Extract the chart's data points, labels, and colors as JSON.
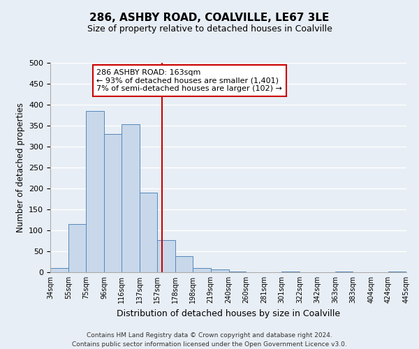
{
  "title": "286, ASHBY ROAD, COALVILLE, LE67 3LE",
  "subtitle": "Size of property relative to detached houses in Coalville",
  "xlabel": "Distribution of detached houses by size in Coalville",
  "ylabel": "Number of detached properties",
  "bin_edges": [
    34,
    55,
    75,
    96,
    116,
    137,
    157,
    178,
    198,
    219,
    240,
    260,
    281,
    301,
    322,
    342,
    363,
    383,
    404,
    424,
    445
  ],
  "bar_heights": [
    10,
    115,
    385,
    330,
    353,
    190,
    77,
    38,
    10,
    6,
    2,
    0,
    0,
    2,
    0,
    0,
    1,
    0,
    0,
    1
  ],
  "bar_color": "#c8d8ea",
  "bar_edge_color": "#5588bb",
  "background_color": "#e8eef5",
  "vline_x": 163,
  "vline_color": "#cc0000",
  "annotation_title": "286 ASHBY ROAD: 163sqm",
  "annotation_line1": "← 93% of detached houses are smaller (1,401)",
  "annotation_line2": "7% of semi-detached houses are larger (102) →",
  "annotation_box_color": "#cc0000",
  "ylim": [
    0,
    500
  ],
  "tick_labels": [
    "34sqm",
    "55sqm",
    "75sqm",
    "96sqm",
    "116sqm",
    "137sqm",
    "157sqm",
    "178sqm",
    "198sqm",
    "219sqm",
    "240sqm",
    "260sqm",
    "281sqm",
    "301sqm",
    "322sqm",
    "342sqm",
    "363sqm",
    "383sqm",
    "404sqm",
    "424sqm",
    "445sqm"
  ],
  "footer_line1": "Contains HM Land Registry data © Crown copyright and database right 2024.",
  "footer_line2": "Contains public sector information licensed under the Open Government Licence v3.0.",
  "grid_color": "#ffffff",
  "yticks": [
    0,
    50,
    100,
    150,
    200,
    250,
    300,
    350,
    400,
    450,
    500
  ]
}
